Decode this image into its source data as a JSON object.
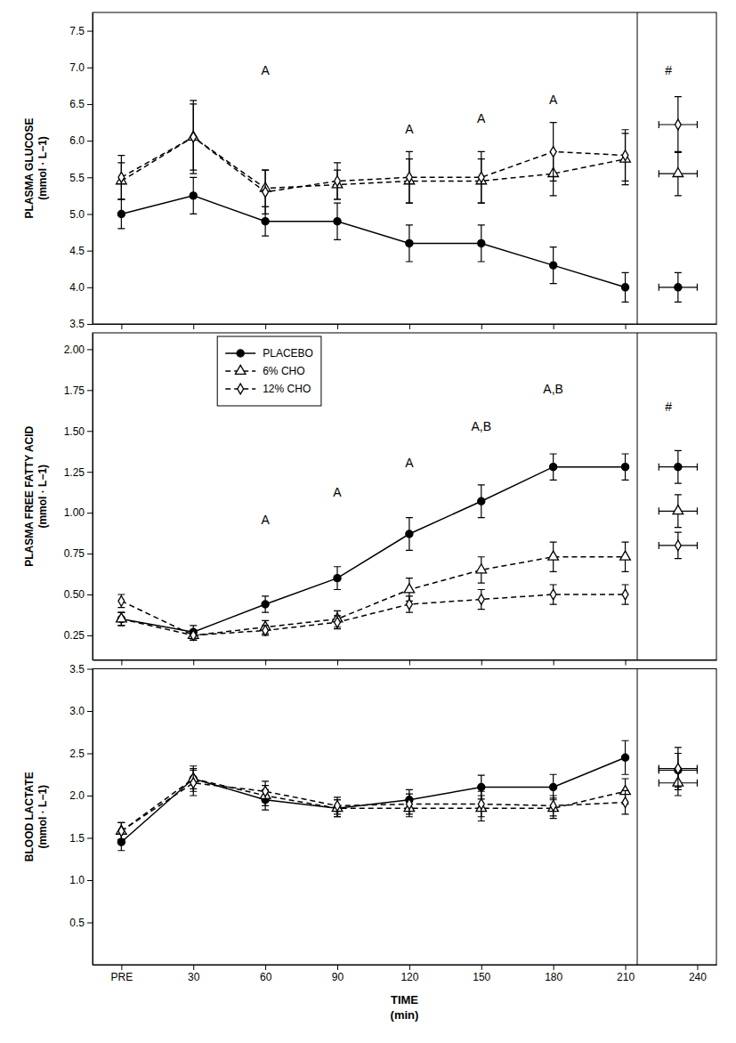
{
  "chart_data": [
    {
      "type": "line",
      "ylabel": "PLASMA GLUCOSE\n(mmol · L−1)",
      "x": [
        0,
        30,
        60,
        90,
        120,
        150,
        180,
        210
      ],
      "xlim": [
        -12,
        248
      ],
      "xticks": [
        {
          "value": 0,
          "label": "PRE"
        },
        30,
        60,
        90,
        120,
        150,
        180,
        210
      ],
      "tick_labels": "y",
      "ylim": [
        3.5,
        7.75
      ],
      "yticks": [
        3.5,
        {
          "value": 4.0,
          "label": "4.0"
        },
        4.5,
        {
          "value": 5.0,
          "label": "5.0"
        },
        5.5,
        {
          "value": 6.0,
          "label": "6.0"
        },
        6.5,
        {
          "value": 7.0,
          "label": "7.0"
        },
        7.5
      ],
      "vline_x": 215,
      "post_x": 232,
      "post_x_error": 8,
      "series": [
        {
          "color": "#000000",
          "marker": "circle",
          "line_style": "solid",
          "values": [
            5.0,
            5.25,
            4.9,
            4.9,
            4.6,
            4.6,
            4.3,
            4.0
          ],
          "errors": [
            0.2,
            0.25,
            0.2,
            0.25,
            0.25,
            0.25,
            0.25,
            0.2
          ],
          "post_value": 4.0,
          "post_error": 0.2
        },
        {
          "color": "#000000",
          "marker": "triangle-open",
          "line_style": "dashed",
          "values": [
            5.45,
            6.05,
            5.35,
            5.4,
            5.45,
            5.45,
            5.55,
            5.75
          ],
          "errors": [
            0.25,
            0.45,
            0.25,
            0.2,
            0.3,
            0.3,
            0.3,
            0.35
          ],
          "post_value": 5.55,
          "post_error": 0.3
        },
        {
          "color": "#000000",
          "marker": "diamond-open",
          "line_style": "dashed",
          "values": [
            5.5,
            6.05,
            5.3,
            5.45,
            5.5,
            5.5,
            5.85,
            5.8
          ],
          "errors": [
            0.3,
            0.5,
            0.3,
            0.25,
            0.35,
            0.35,
            0.4,
            0.35
          ],
          "post_value": 6.22,
          "post_error": 0.38
        }
      ],
      "annotations": [
        {
          "text": "A",
          "x": 60,
          "y": 6.9
        },
        {
          "text": "A",
          "x": 120,
          "y": 6.1
        },
        {
          "text": "A",
          "x": 150,
          "y": 6.25
        },
        {
          "text": "A",
          "x": 180,
          "y": 6.5
        },
        {
          "text": "#",
          "x": 228,
          "y": 6.9
        }
      ]
    },
    {
      "type": "line",
      "ylabel": "PLASMA FREE FATTY ACID\n(mmol · L−1)",
      "x": [
        0,
        30,
        60,
        90,
        120,
        150,
        180,
        210
      ],
      "xlim": [
        -12,
        248
      ],
      "xticks": [
        {
          "value": 0,
          "label": "PRE"
        },
        30,
        60,
        90,
        120,
        150,
        180,
        210
      ],
      "tick_labels": "y",
      "ylim": [
        0.1,
        2.1
      ],
      "yticks": [
        0.25,
        {
          "value": 0.5,
          "label": "0.50"
        },
        0.75,
        {
          "value": 1.0,
          "label": "1.00"
        },
        1.25,
        {
          "value": 1.5,
          "label": "1.50"
        },
        1.75,
        {
          "value": 2.0,
          "label": "2.00"
        }
      ],
      "vline_x": 215,
      "post_x": 232,
      "post_x_error": 8,
      "legend": "upper left",
      "series": [
        {
          "name": "PLACEBO",
          "color": "#000000",
          "marker": "circle",
          "line_style": "solid",
          "values": [
            0.35,
            0.27,
            0.44,
            0.6,
            0.87,
            1.07,
            1.28,
            1.28
          ],
          "errors": [
            0.04,
            0.04,
            0.05,
            0.07,
            0.1,
            0.1,
            0.08,
            0.08
          ],
          "post_value": 1.28,
          "post_error": 0.1
        },
        {
          "name": "6% CHO",
          "color": "#000000",
          "marker": "triangle-open",
          "line_style": "dashed",
          "values": [
            0.35,
            0.25,
            0.3,
            0.35,
            0.53,
            0.65,
            0.73,
            0.73
          ],
          "errors": [
            0.04,
            0.03,
            0.04,
            0.05,
            0.07,
            0.08,
            0.09,
            0.09
          ],
          "post_value": 1.01,
          "post_error": 0.1
        },
        {
          "name": "12% CHO",
          "color": "#000000",
          "marker": "diamond-open",
          "line_style": "dashed",
          "values": [
            0.46,
            0.25,
            0.28,
            0.33,
            0.44,
            0.47,
            0.5,
            0.5
          ],
          "errors": [
            0.04,
            0.03,
            0.03,
            0.04,
            0.05,
            0.06,
            0.06,
            0.06
          ],
          "post_value": 0.8,
          "post_error": 0.08
        }
      ],
      "annotations": [
        {
          "text": "A",
          "x": 60,
          "y": 0.93
        },
        {
          "text": "A",
          "x": 90,
          "y": 1.1
        },
        {
          "text": "A",
          "x": 120,
          "y": 1.28
        },
        {
          "text": "A,B",
          "x": 150,
          "y": 1.5
        },
        {
          "text": "A,B",
          "x": 180,
          "y": 1.73
        },
        {
          "text": "#",
          "x": 228,
          "y": 1.62
        }
      ]
    },
    {
      "type": "line",
      "ylabel": "BLOOD LACTATE\n(mmol · L−1)",
      "xlabel": "TIME\n(min)",
      "x": [
        0,
        30,
        60,
        90,
        120,
        150,
        180,
        210
      ],
      "xlim": [
        -12,
        248
      ],
      "xticks": [
        {
          "value": 0,
          "label": "PRE"
        },
        30,
        60,
        90,
        120,
        150,
        180,
        210,
        240
      ],
      "ylim": [
        0.0,
        3.5
      ],
      "yticks": [
        0.5,
        {
          "value": 1.0,
          "label": "1.0"
        },
        1.5,
        {
          "value": 2.0,
          "label": "2.0"
        },
        2.5,
        {
          "value": 3.0,
          "label": "3.0"
        },
        3.5
      ],
      "vline_x": 215,
      "post_x": 232,
      "post_x_error": 8,
      "series": [
        {
          "color": "#000000",
          "marker": "circle",
          "line_style": "solid",
          "values": [
            1.45,
            2.2,
            1.95,
            1.85,
            1.95,
            2.1,
            2.1,
            2.45
          ],
          "errors": [
            0.1,
            0.12,
            0.12,
            0.1,
            0.12,
            0.14,
            0.15,
            0.2
          ],
          "post_value": 2.3,
          "post_error": 0.2
        },
        {
          "color": "#000000",
          "marker": "triangle-open",
          "line_style": "dashed",
          "values": [
            1.58,
            2.2,
            2.0,
            1.85,
            1.85,
            1.85,
            1.85,
            2.05
          ],
          "errors": [
            0.1,
            0.15,
            0.12,
            0.1,
            0.1,
            0.15,
            0.12,
            0.15
          ],
          "post_value": 2.15,
          "post_error": 0.15
        },
        {
          "color": "#000000",
          "marker": "diamond-open",
          "line_style": "dashed",
          "values": [
            1.58,
            2.15,
            2.05,
            1.88,
            1.9,
            1.9,
            1.88,
            1.92
          ],
          "errors": [
            0.1,
            0.15,
            0.12,
            0.1,
            0.12,
            0.15,
            0.12,
            0.14
          ],
          "post_value": 2.32,
          "post_error": 0.25
        }
      ]
    }
  ]
}
